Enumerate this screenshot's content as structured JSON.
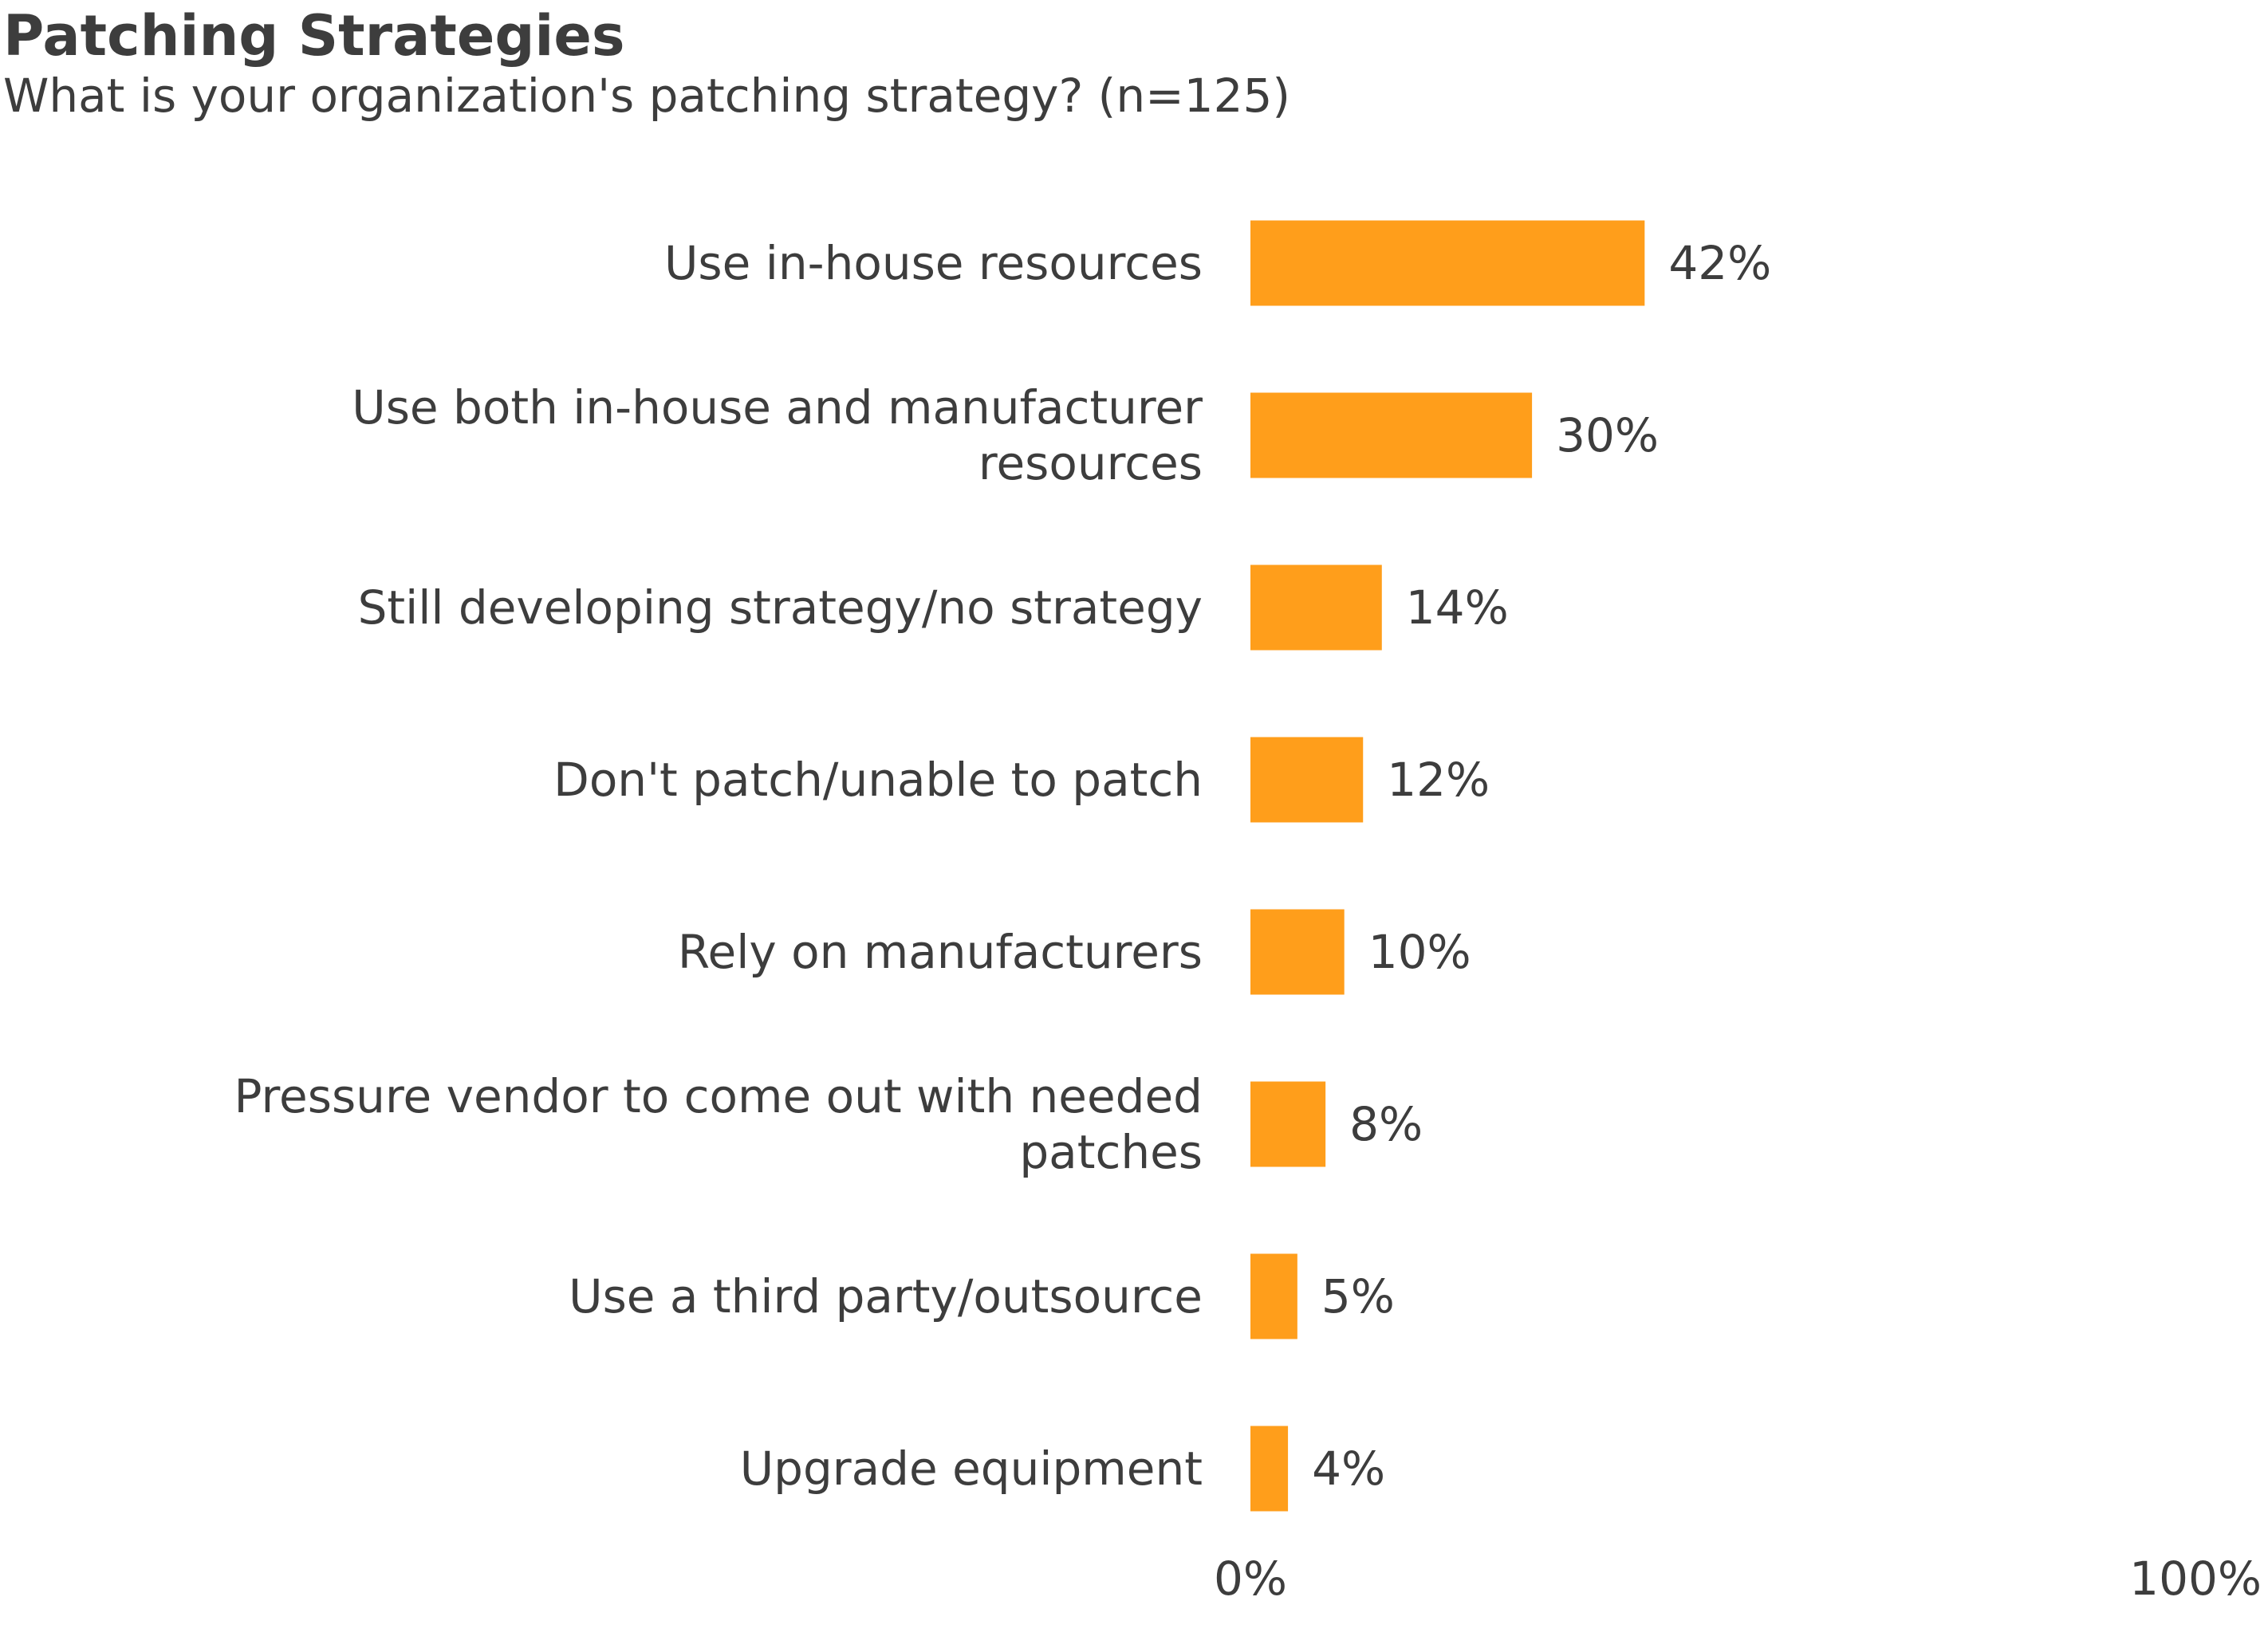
{
  "header": {
    "title": "Patching Strategies",
    "subtitle": "What is your organization's patching strategy? (n=125)"
  },
  "chart_data": {
    "type": "bar",
    "orientation": "horizontal",
    "title": "Patching Strategies",
    "subtitle": "What is your organization's patching strategy? (n=125)",
    "xlabel": "",
    "ylabel": "",
    "xlim": [
      0,
      100
    ],
    "unit": "%",
    "grid": false,
    "legend": "none",
    "bar_color": "#ff9e1b",
    "categories": [
      [
        "Use in-house resources"
      ],
      [
        "Use both in-house and manufacturer",
        "resources"
      ],
      [
        "Still developing strategy/no strategy"
      ],
      [
        "Don't patch/unable to patch"
      ],
      [
        "Rely on manufacturers"
      ],
      [
        "Pressure vendor to come out with needed",
        "patches"
      ],
      [
        "Use a third party/outsource"
      ],
      [
        "Upgrade equipment"
      ]
    ],
    "values": [
      42,
      30,
      14,
      12,
      10,
      8,
      5,
      4
    ],
    "value_labels": [
      "42%",
      "30%",
      "14%",
      "12%",
      "10%",
      "8%",
      "5%",
      "4%"
    ],
    "x_tick_labels": [
      "0%",
      "100%"
    ]
  }
}
